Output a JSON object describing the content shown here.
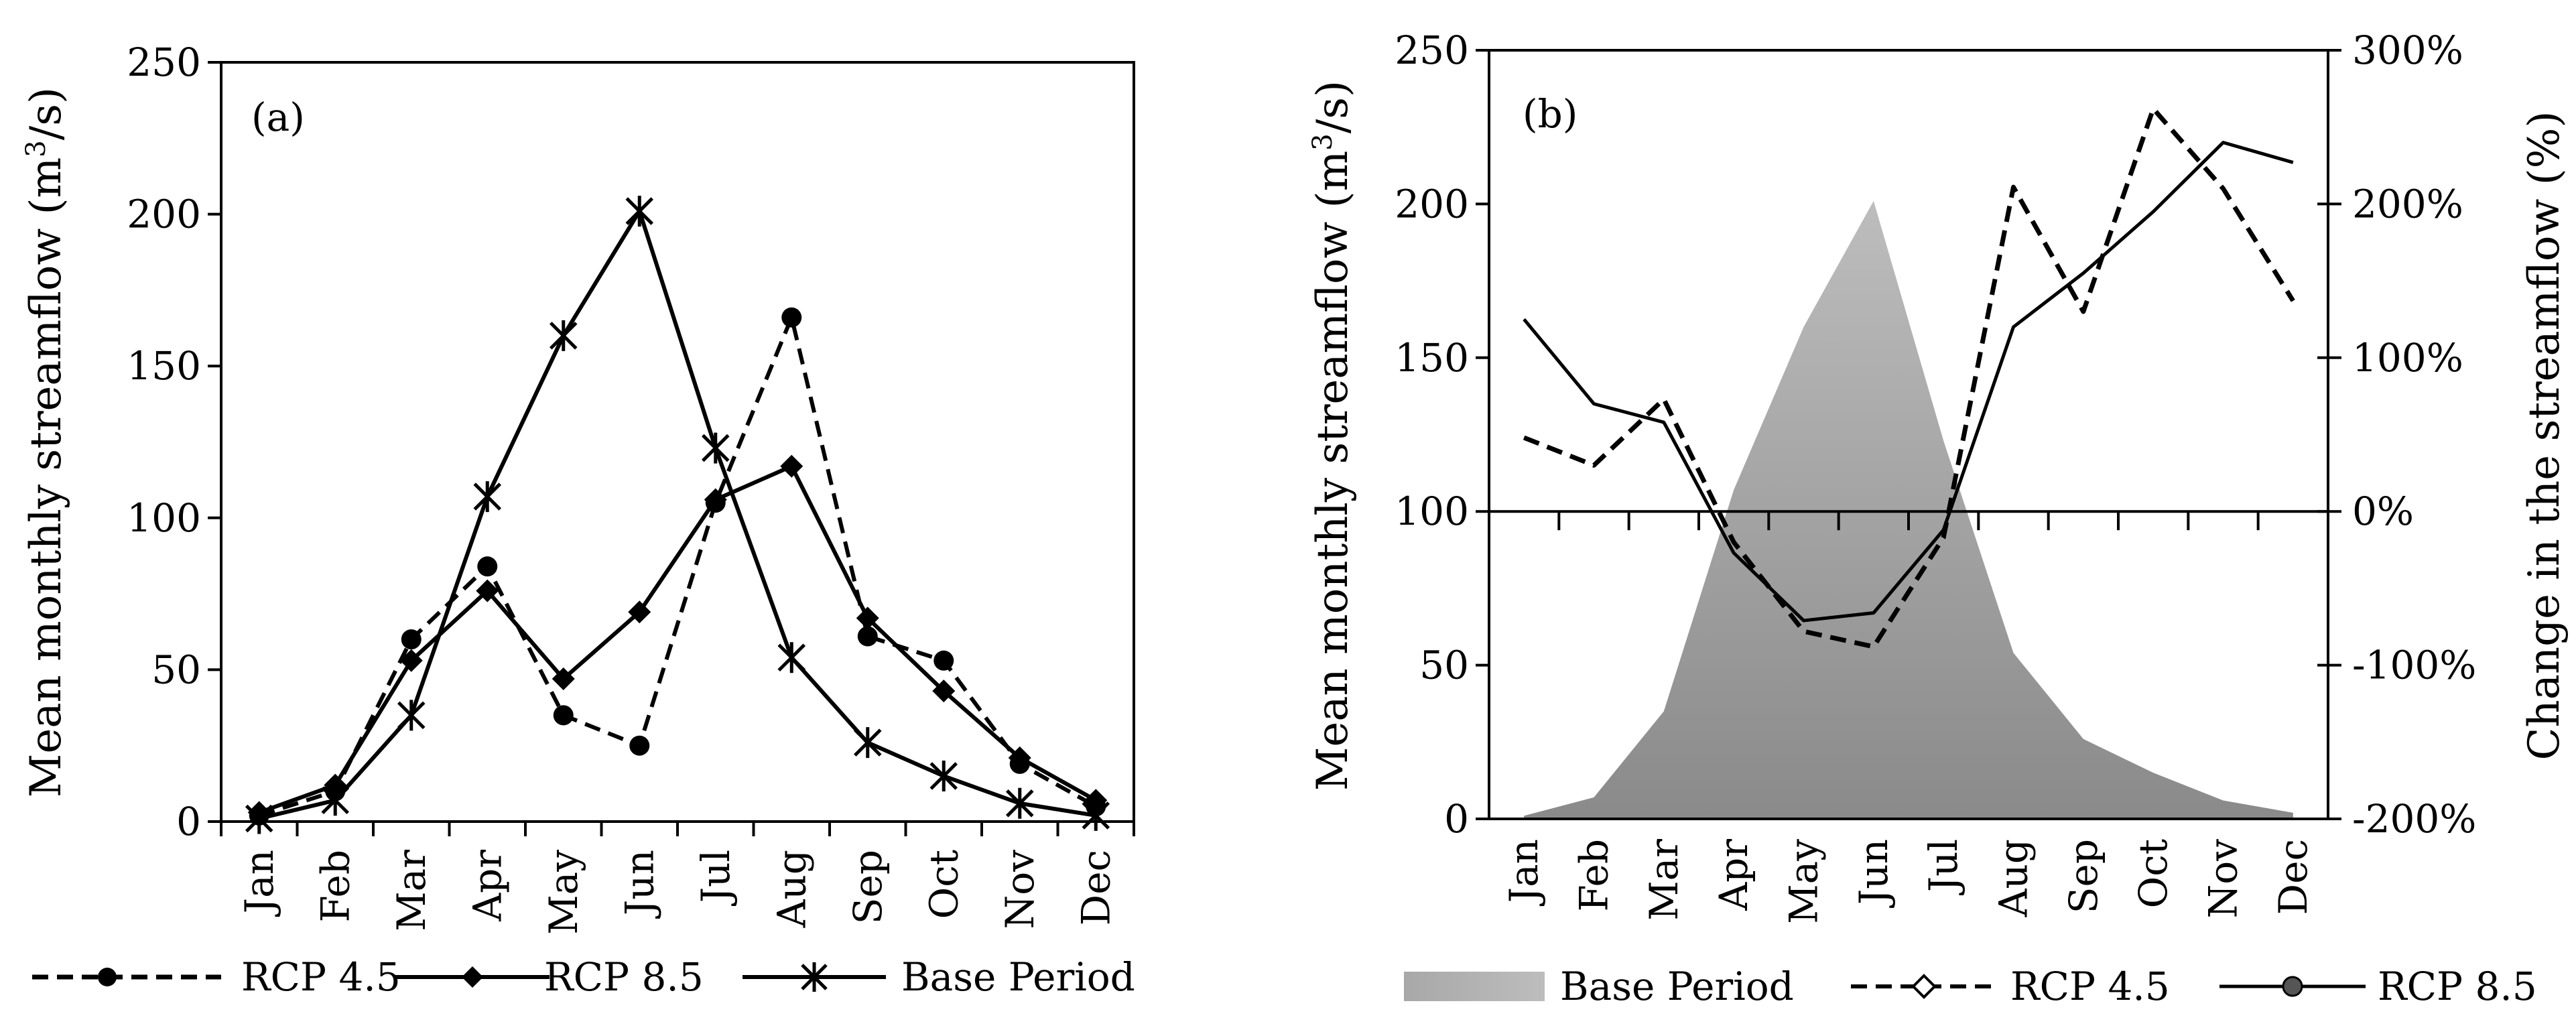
{
  "chart_data": [
    {
      "type": "line",
      "panel_label": "(a)",
      "categories": [
        "Jan",
        "Feb",
        "Mar",
        "Apr",
        "May",
        "Jun",
        "Jul",
        "Aug",
        "Sep",
        "Oct",
        "Nov",
        "Dec"
      ],
      "ylabel_main": "Mean monthly streamflow (m",
      "ylabel_sup": "3",
      "ylabel_tail": "/s)",
      "ylim": [
        0,
        250
      ],
      "yticks": [
        "0",
        "50",
        "100",
        "150",
        "200",
        "250"
      ],
      "series": [
        {
          "name": "RCP 4.5",
          "style": "dashed",
          "marker": "circle",
          "values": [
            2,
            10,
            60,
            84,
            35,
            25,
            105,
            166,
            61,
            53,
            19,
            5
          ]
        },
        {
          "name": "RCP 8.5",
          "style": "solid",
          "marker": "diamond",
          "values": [
            3,
            12,
            53,
            76,
            47,
            69,
            106,
            117,
            67,
            43,
            21,
            7
          ]
        },
        {
          "name": "Base Period",
          "style": "solid",
          "marker": "star",
          "values": [
            1,
            7,
            35,
            107,
            160,
            201,
            123,
            54,
            26,
            15,
            6,
            2
          ]
        }
      ]
    },
    {
      "type": "area+line",
      "panel_label": "(b)",
      "categories": [
        "Jan",
        "Feb",
        "Mar",
        "Apr",
        "May",
        "Jun",
        "Jul",
        "Aug",
        "Sep",
        "Oct",
        "Nov",
        "Dec"
      ],
      "ylabel_left_main": "Mean monthly streamflow (m",
      "ylabel_left_sup": "3",
      "ylabel_left_tail": "/s)",
      "ylabel_right": "Change in the streamflow (%)",
      "ylim_left": [
        0,
        250
      ],
      "ylim_right": [
        -200,
        300
      ],
      "yticks_left": [
        "0",
        "50",
        "100",
        "150",
        "200",
        "250"
      ],
      "yticks_right": [
        "-200%",
        "-100%",
        "0%",
        "100%",
        "200%",
        "300%"
      ],
      "area": {
        "name": "Base Period",
        "color": "#8c8c8c",
        "values": [
          1,
          7,
          35,
          107,
          160,
          201,
          123,
          54,
          26,
          15,
          6,
          2
        ]
      },
      "series": [
        {
          "name": "RCP 4.5",
          "style": "dashed",
          "marker": "open-diamond",
          "axis": "right",
          "values": [
            48,
            30,
            73,
            -20,
            -78,
            -88,
            -17,
            211,
            130,
            262,
            210,
            137
          ]
        },
        {
          "name": "RCP 8.5",
          "style": "solid",
          "marker": "circle",
          "axis": "right",
          "values": [
            125,
            70,
            58,
            -27,
            -71,
            -66,
            -12,
            120,
            155,
            195,
            240,
            227
          ]
        }
      ]
    }
  ]
}
